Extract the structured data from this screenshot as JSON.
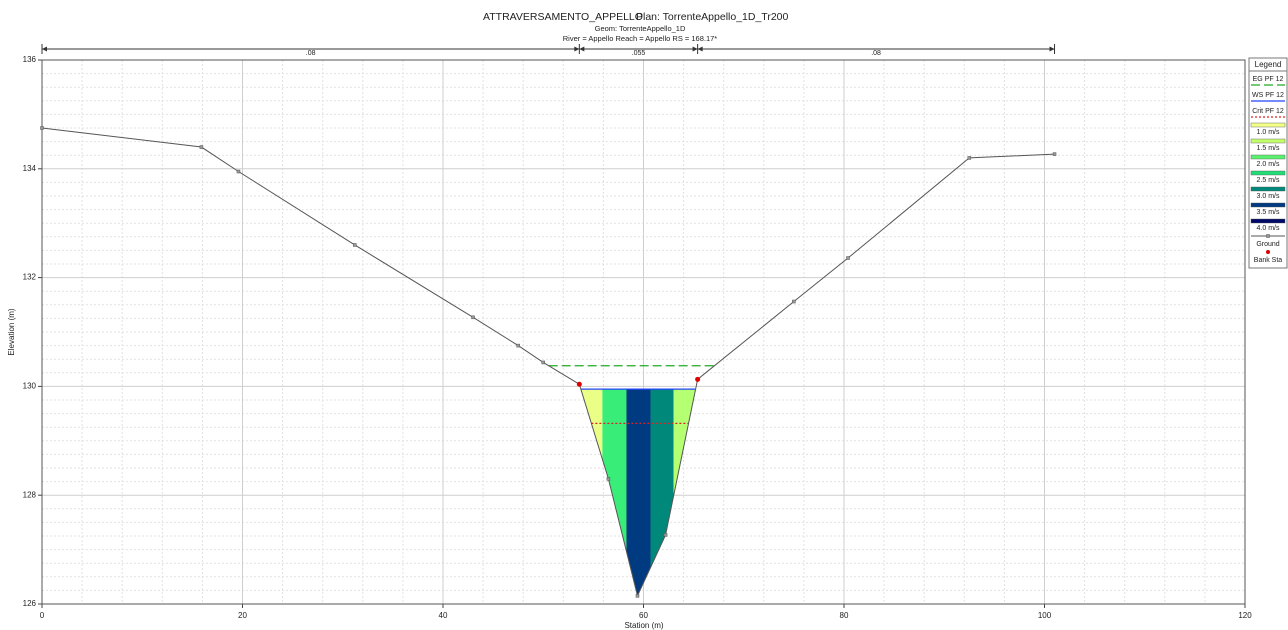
{
  "chart_data": {
    "type": "cross-section",
    "title": "ATTRAVERSAMENTO_APPELLO",
    "plan": "Plan: TorrenteAppello_1D_Tr200",
    "subtitle_1": "Geom: TorrenteAppello_1D",
    "subtitle_2": "River = Appello   Reach = Appello     RS = 168.17*",
    "xlabel": "Station (m)",
    "ylabel": "Elevation (m)",
    "xlim": [
      0,
      120
    ],
    "xticks": [
      0,
      20,
      40,
      60,
      80,
      100,
      120
    ],
    "ylim": [
      126,
      136
    ],
    "yticks": [
      126,
      128,
      130,
      132,
      134,
      136
    ],
    "grid": true,
    "legend_title": "Legend",
    "legend_position": "right",
    "mannings_n": {
      "stations": [
        0,
        53.6,
        65.4,
        101
      ],
      "labels": [
        ".08",
        ".055",
        ".08"
      ]
    },
    "ground": {
      "name": "Ground",
      "color": "#555555",
      "x": [
        0,
        15.9,
        19.6,
        31.2,
        43,
        47.5,
        50,
        53.6,
        56.5,
        59.4,
        62.2,
        65.4,
        75,
        80.4,
        92.5,
        101
      ],
      "values": [
        134.75,
        134.4,
        133.95,
        132.6,
        131.27,
        130.75,
        130.44,
        130.04,
        128.3,
        126.15,
        127.27,
        130.13,
        131.56,
        132.36,
        134.2,
        134.27
      ]
    },
    "bank_stations": {
      "name": "Bank Sta",
      "color": "#e00000",
      "x": [
        53.6,
        65.4
      ],
      "values": [
        130.04,
        130.13
      ]
    },
    "profiles": [
      {
        "name": "EG PF 12",
        "color": "#22aa22",
        "style": "dashed",
        "value": 130.38
      },
      {
        "name": "WS PF 12",
        "color": "#2244ff",
        "style": "solid",
        "value": 129.95
      },
      {
        "name": "Crit PF 12",
        "color": "#e02020",
        "style": "dotted",
        "value": 129.32
      }
    ],
    "velocity_legend": [
      {
        "name": "1.0 m/s",
        "color": "#f4ff88"
      },
      {
        "name": "1.5 m/s",
        "color": "#c4ff6e"
      },
      {
        "name": "2.0 m/s",
        "color": "#5cf070"
      },
      {
        "name": "2.5 m/s",
        "color": "#22dd77"
      },
      {
        "name": "3.0 m/s",
        "color": "#00887a"
      },
      {
        "name": "3.5 m/s",
        "color": "#003a80"
      },
      {
        "name": "4.0 m/s",
        "color": "#000a66"
      }
    ],
    "velocity_slices": {
      "stations": [
        53.7,
        55.9,
        58.3,
        60.7,
        63.0,
        65.3
      ],
      "colors": [
        "#eaff86",
        "#38ee78",
        "#003a80",
        "#00887a",
        "#b4ff72"
      ]
    }
  }
}
